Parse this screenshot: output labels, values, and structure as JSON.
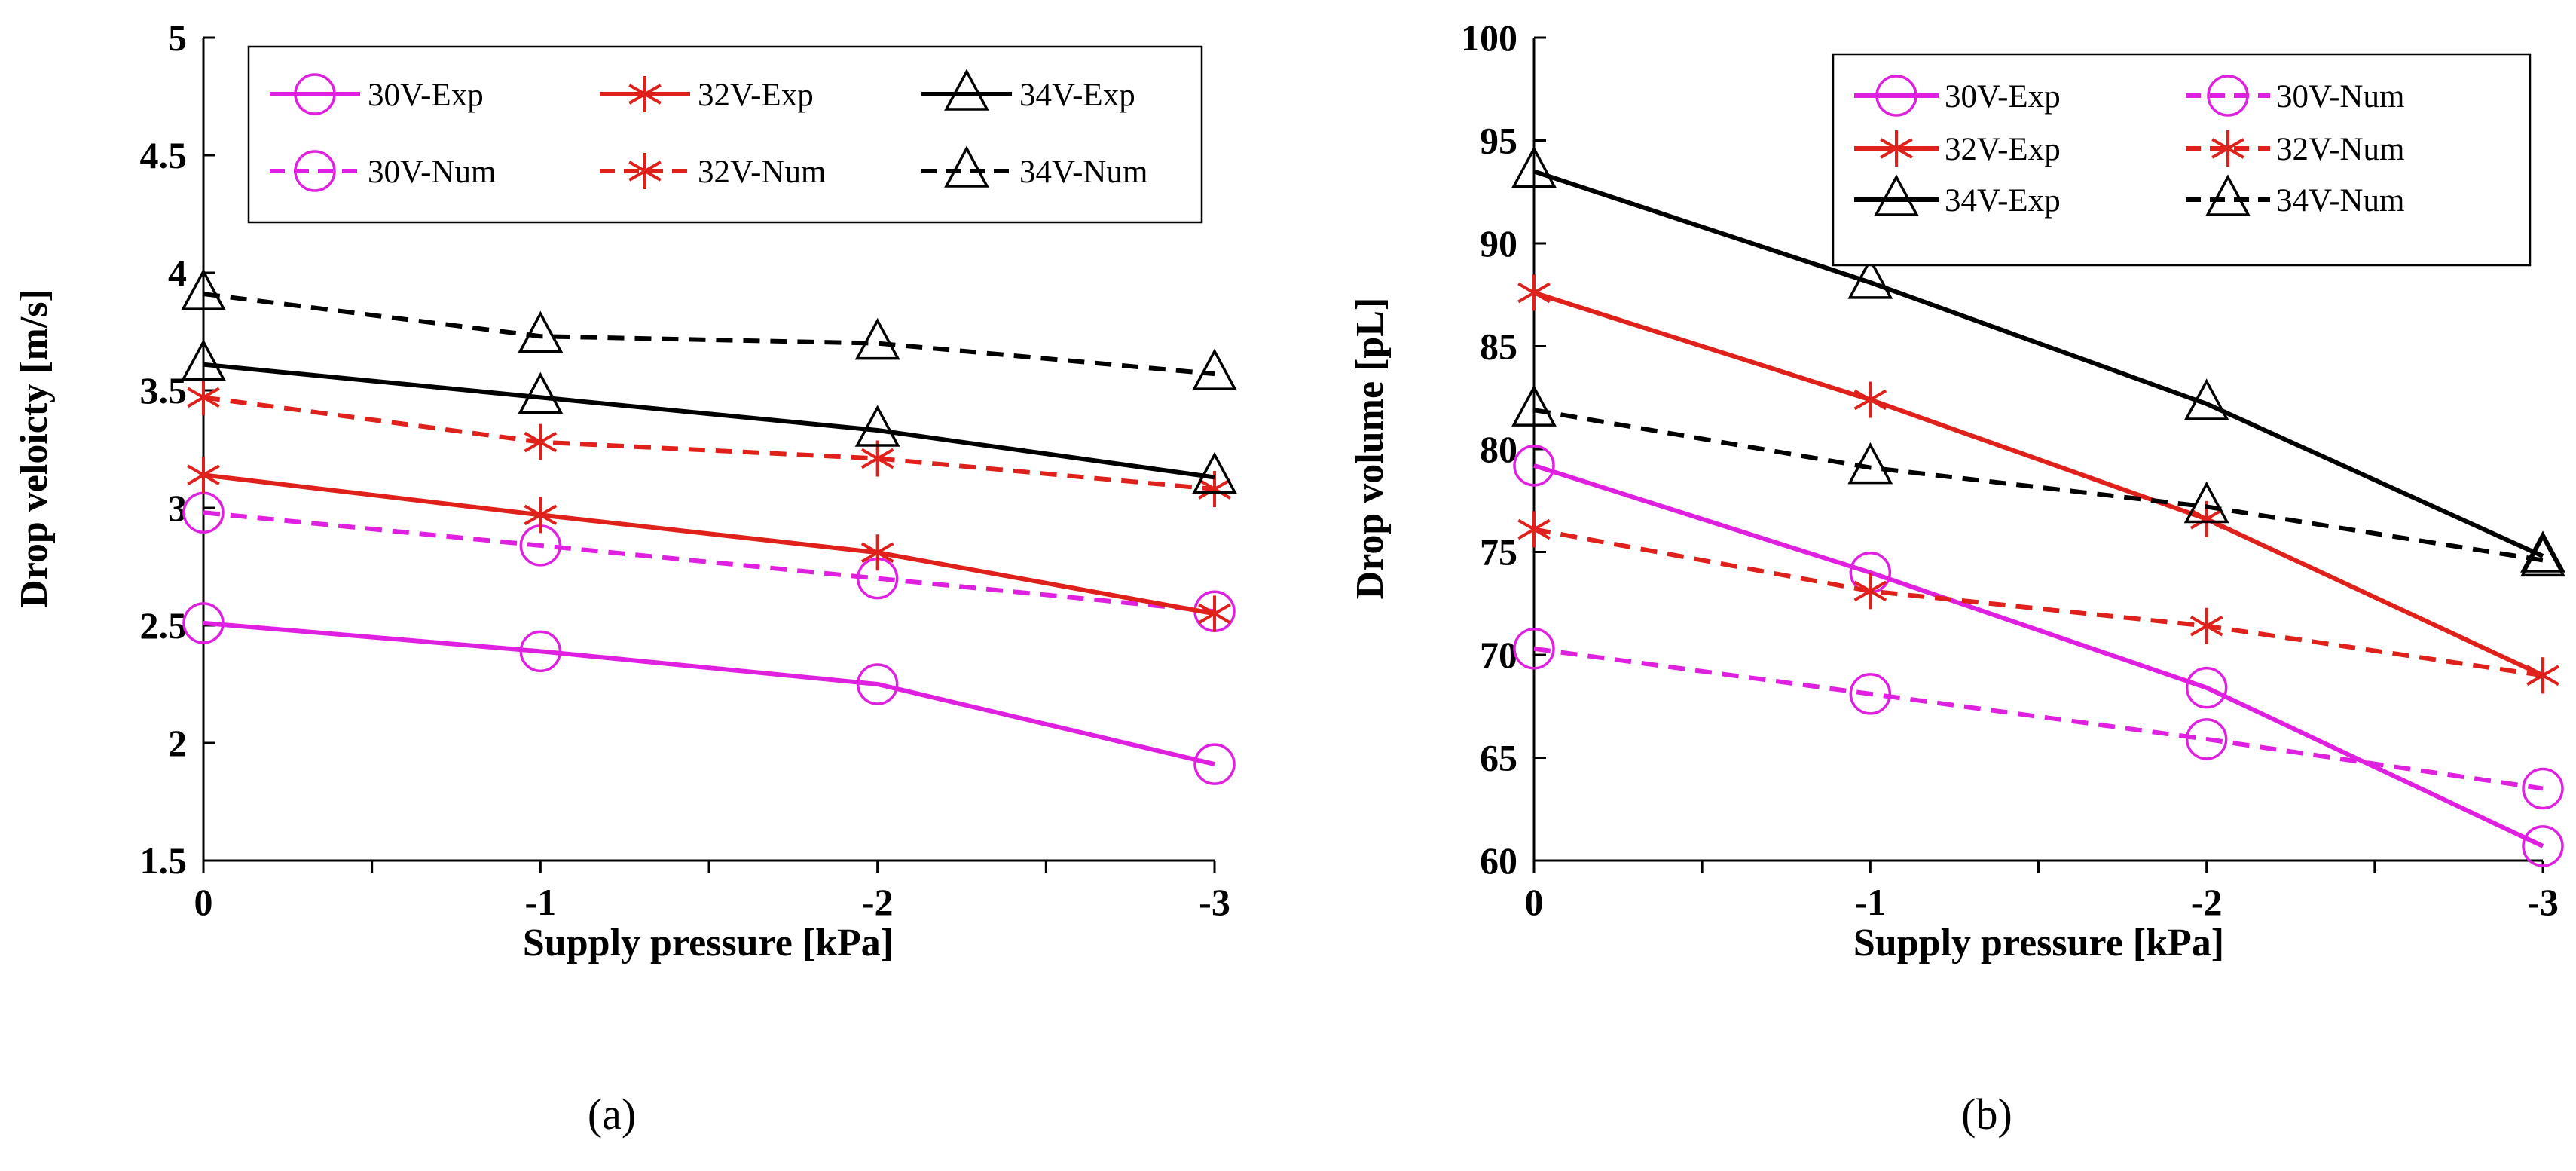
{
  "chart_data": [
    {
      "type": "line",
      "panel_label": "(a)",
      "xlabel": "Supply pressure [kPa]",
      "ylabel": "Drop veloicty [m/s]",
      "x": [
        0,
        -1,
        -2,
        -3
      ],
      "x_tick_labels": [
        "0",
        "-1",
        "-2",
        "-3"
      ],
      "ylim": [
        1.5,
        5
      ],
      "y_tick_labels": [
        "1.5",
        "2",
        "2.5",
        "3",
        "3.5",
        "4",
        "4.5",
        "5"
      ],
      "grid": false,
      "legend_position": "top",
      "legend_order": [
        0,
        2,
        4,
        1,
        3,
        5
      ],
      "series": [
        {
          "name": "30V-Exp",
          "color": "#e020e0",
          "dash": "solid",
          "marker": "circle",
          "values": [
            2.51,
            2.39,
            2.25,
            1.91
          ]
        },
        {
          "name": "30V-Num",
          "color": "#e020e0",
          "dash": "dashed",
          "marker": "circle",
          "values": [
            2.98,
            2.84,
            2.7,
            2.56
          ]
        },
        {
          "name": "32V-Exp",
          "color": "#e0201a",
          "dash": "solid",
          "marker": "asterisk",
          "values": [
            3.14,
            2.97,
            2.81,
            2.55
          ]
        },
        {
          "name": "32V-Num",
          "color": "#e0201a",
          "dash": "dashed",
          "marker": "asterisk",
          "values": [
            3.47,
            3.28,
            3.21,
            3.08
          ]
        },
        {
          "name": "34V-Exp",
          "color": "#000000",
          "dash": "solid",
          "marker": "triangle",
          "values": [
            3.61,
            3.47,
            3.33,
            3.13
          ]
        },
        {
          "name": "34V-Num",
          "color": "#000000",
          "dash": "dashed",
          "marker": "triangle",
          "values": [
            3.91,
            3.73,
            3.7,
            3.57
          ]
        }
      ]
    },
    {
      "type": "line",
      "panel_label": "(b)",
      "xlabel": "Supply pressure [kPa]",
      "ylabel": "Drop  volume [pL]",
      "x": [
        0,
        -1,
        -2,
        -3
      ],
      "x_tick_labels": [
        "0",
        "-1",
        "-2",
        "-3"
      ],
      "ylim": [
        60,
        100
      ],
      "y_tick_labels": [
        "60",
        "65",
        "70",
        "75",
        "80",
        "85",
        "90",
        "95",
        "100"
      ],
      "grid": false,
      "legend_position": "top-right",
      "legend_order": [
        0,
        1,
        2,
        3,
        4,
        5
      ],
      "series": [
        {
          "name": "30V-Exp",
          "color": "#e020e0",
          "dash": "solid",
          "marker": "circle",
          "values": [
            79.2,
            74.0,
            68.4,
            60.7
          ]
        },
        {
          "name": "30V-Num",
          "color": "#e020e0",
          "dash": "dashed",
          "marker": "circle",
          "values": [
            70.3,
            68.1,
            65.9,
            63.5
          ]
        },
        {
          "name": "32V-Exp",
          "color": "#e0201a",
          "dash": "solid",
          "marker": "asterisk",
          "values": [
            87.6,
            82.4,
            76.6,
            69.0
          ]
        },
        {
          "name": "32V-Num",
          "color": "#e0201a",
          "dash": "dashed",
          "marker": "asterisk",
          "values": [
            76.1,
            73.1,
            71.4,
            69.0
          ]
        },
        {
          "name": "34V-Exp",
          "color": "#000000",
          "dash": "solid",
          "marker": "triangle",
          "values": [
            93.5,
            88.1,
            82.2,
            74.8
          ]
        },
        {
          "name": "34V-Num",
          "color": "#000000",
          "dash": "dashed",
          "marker": "triangle",
          "values": [
            81.9,
            79.1,
            77.2,
            74.6
          ]
        }
      ]
    }
  ]
}
